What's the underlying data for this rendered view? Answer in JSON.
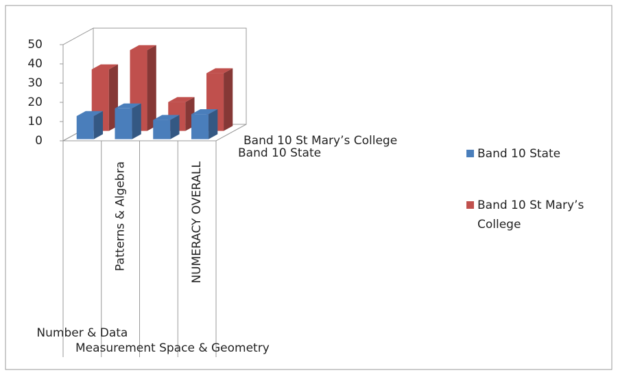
{
  "chart_data": {
    "type": "bar3d",
    "categories": [
      "Number & Data",
      "Patterns & Algebra",
      "Measurement Space & Geometry",
      "NUMERACY OVERALL"
    ],
    "series": [
      {
        "name": "Band  10 State",
        "color": "#4a7ebb",
        "values": [
          12,
          16,
          10,
          13
        ]
      },
      {
        "name": "Band  10 St Mary’s College",
        "color": "#c0504d",
        "values": [
          32,
          42,
          15,
          30
        ]
      }
    ],
    "ylim": [
      0,
      50
    ],
    "yticks": [
      0,
      10,
      20,
      30,
      40,
      50
    ],
    "grid": false,
    "legend": "right"
  }
}
